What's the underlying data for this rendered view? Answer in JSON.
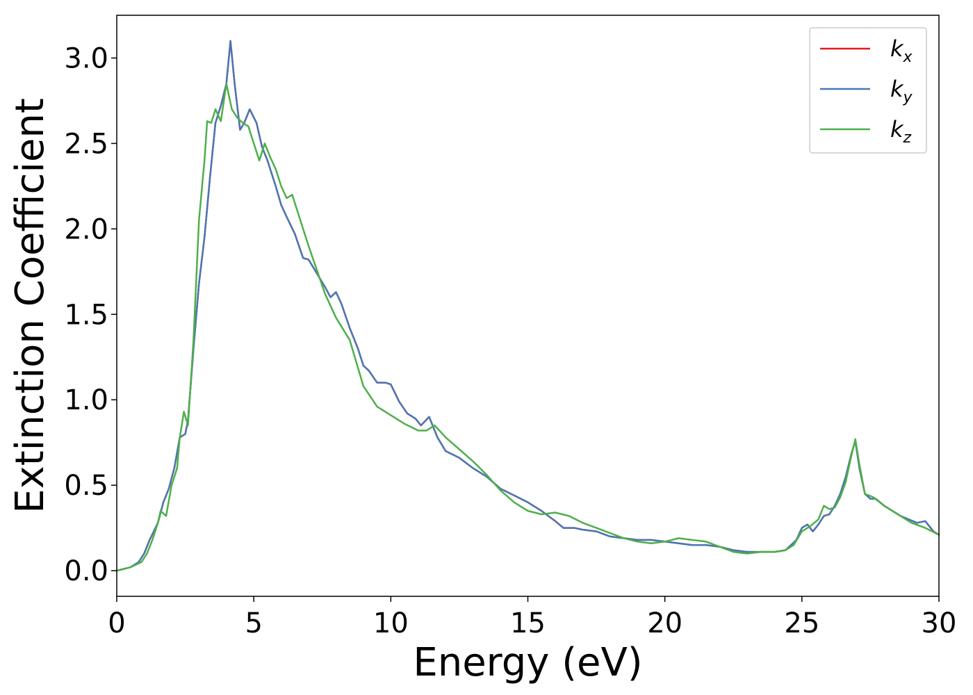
{
  "chart_data": {
    "type": "line",
    "title": "",
    "xlabel": "Energy (eV)",
    "ylabel": "Extinction Coefficient",
    "xlim": [
      0,
      30
    ],
    "ylim": [
      -0.15,
      3.25
    ],
    "xticks": [
      0,
      5,
      10,
      15,
      20,
      25,
      30
    ],
    "xtick_labels": [
      "0",
      "5",
      "10",
      "15",
      "20",
      "25",
      "30"
    ],
    "yticks": [
      0.0,
      0.5,
      1.0,
      1.5,
      2.0,
      2.5,
      3.0
    ],
    "ytick_labels": [
      "0.0",
      "0.5",
      "1.0",
      "1.5",
      "2.0",
      "2.5",
      "3.0"
    ],
    "grid": false,
    "legend_position": "top-right",
    "series": [
      {
        "name": "k",
        "subscript": "x",
        "color": "#e41a1c",
        "x": [
          0,
          0.5,
          0.8,
          1.0,
          1.2,
          1.5,
          1.7,
          1.9,
          2.1,
          2.3,
          2.5,
          2.6,
          2.8,
          3.0,
          3.2,
          3.4,
          3.6,
          3.8,
          4.0,
          4.15,
          4.3,
          4.5,
          4.65,
          4.85,
          5.1,
          5.3,
          5.5,
          5.8,
          6.0,
          6.2,
          6.5,
          6.8,
          7.0,
          7.3,
          7.6,
          7.8,
          8.0,
          8.2,
          8.5,
          8.8,
          9.0,
          9.2,
          9.5,
          9.8,
          10.0,
          10.3,
          10.6,
          10.9,
          11.1,
          11.4,
          11.7,
          12.0,
          12.5,
          13.0,
          13.5,
          14.0,
          14.5,
          15.0,
          15.5,
          16.0,
          16.3,
          16.7,
          17.0,
          17.5,
          18.0,
          18.5,
          19.0,
          19.5,
          20.0,
          20.5,
          21.0,
          21.5,
          22.0,
          22.5,
          23.0,
          23.5,
          24.0,
          24.4,
          24.8,
          25.0,
          25.2,
          25.4,
          25.6,
          25.8,
          26.0,
          26.2,
          26.4,
          26.6,
          26.8,
          26.95,
          27.1,
          27.3,
          27.5,
          27.7,
          28.0,
          28.3,
          28.6,
          28.9,
          29.2,
          29.5,
          29.8,
          30.0
        ],
        "y": [
          0.0,
          0.02,
          0.05,
          0.1,
          0.18,
          0.28,
          0.4,
          0.48,
          0.6,
          0.78,
          0.8,
          0.88,
          1.3,
          1.68,
          1.95,
          2.3,
          2.62,
          2.72,
          2.85,
          3.1,
          2.85,
          2.58,
          2.62,
          2.7,
          2.62,
          2.48,
          2.4,
          2.25,
          2.14,
          2.07,
          1.97,
          1.83,
          1.82,
          1.74,
          1.66,
          1.6,
          1.63,
          1.56,
          1.42,
          1.3,
          1.2,
          1.17,
          1.1,
          1.1,
          1.09,
          0.99,
          0.92,
          0.89,
          0.85,
          0.9,
          0.78,
          0.7,
          0.66,
          0.6,
          0.55,
          0.48,
          0.44,
          0.4,
          0.35,
          0.29,
          0.25,
          0.25,
          0.24,
          0.23,
          0.2,
          0.19,
          0.18,
          0.18,
          0.17,
          0.16,
          0.15,
          0.15,
          0.14,
          0.12,
          0.11,
          0.11,
          0.11,
          0.12,
          0.18,
          0.25,
          0.27,
          0.23,
          0.27,
          0.32,
          0.33,
          0.38,
          0.45,
          0.55,
          0.68,
          0.76,
          0.6,
          0.45,
          0.42,
          0.42,
          0.38,
          0.35,
          0.32,
          0.3,
          0.28,
          0.29,
          0.23,
          0.21
        ]
      },
      {
        "name": "k",
        "subscript": "y",
        "color": "#4a78b5",
        "x": [
          0,
          0.5,
          0.8,
          1.0,
          1.2,
          1.5,
          1.7,
          1.9,
          2.1,
          2.3,
          2.5,
          2.6,
          2.8,
          3.0,
          3.2,
          3.4,
          3.6,
          3.8,
          4.0,
          4.15,
          4.3,
          4.5,
          4.65,
          4.85,
          5.1,
          5.3,
          5.5,
          5.8,
          6.0,
          6.2,
          6.5,
          6.8,
          7.0,
          7.3,
          7.6,
          7.8,
          8.0,
          8.2,
          8.5,
          8.8,
          9.0,
          9.2,
          9.5,
          9.8,
          10.0,
          10.3,
          10.6,
          10.9,
          11.1,
          11.4,
          11.7,
          12.0,
          12.5,
          13.0,
          13.5,
          14.0,
          14.5,
          15.0,
          15.5,
          16.0,
          16.3,
          16.7,
          17.0,
          17.5,
          18.0,
          18.5,
          19.0,
          19.5,
          20.0,
          20.5,
          21.0,
          21.5,
          22.0,
          22.5,
          23.0,
          23.5,
          24.0,
          24.4,
          24.8,
          25.0,
          25.2,
          25.4,
          25.6,
          25.8,
          26.0,
          26.2,
          26.4,
          26.6,
          26.8,
          26.95,
          27.1,
          27.3,
          27.5,
          27.7,
          28.0,
          28.3,
          28.6,
          28.9,
          29.2,
          29.5,
          29.8,
          30.0
        ],
        "y": [
          0.0,
          0.02,
          0.05,
          0.1,
          0.18,
          0.28,
          0.4,
          0.48,
          0.6,
          0.78,
          0.8,
          0.88,
          1.3,
          1.68,
          1.95,
          2.3,
          2.62,
          2.72,
          2.85,
          3.1,
          2.85,
          2.58,
          2.62,
          2.7,
          2.62,
          2.48,
          2.4,
          2.25,
          2.14,
          2.07,
          1.97,
          1.83,
          1.82,
          1.74,
          1.66,
          1.6,
          1.63,
          1.56,
          1.42,
          1.3,
          1.2,
          1.17,
          1.1,
          1.1,
          1.09,
          0.99,
          0.92,
          0.89,
          0.85,
          0.9,
          0.78,
          0.7,
          0.66,
          0.6,
          0.55,
          0.48,
          0.44,
          0.4,
          0.35,
          0.29,
          0.25,
          0.25,
          0.24,
          0.23,
          0.2,
          0.19,
          0.18,
          0.18,
          0.17,
          0.16,
          0.15,
          0.15,
          0.14,
          0.12,
          0.11,
          0.11,
          0.11,
          0.12,
          0.18,
          0.25,
          0.27,
          0.23,
          0.27,
          0.32,
          0.33,
          0.38,
          0.45,
          0.55,
          0.68,
          0.76,
          0.6,
          0.45,
          0.42,
          0.42,
          0.38,
          0.35,
          0.32,
          0.3,
          0.28,
          0.29,
          0.23,
          0.21
        ]
      },
      {
        "name": "k",
        "subscript": "z",
        "color": "#4daf4a",
        "x": [
          0,
          0.5,
          0.9,
          1.1,
          1.3,
          1.5,
          1.6,
          1.8,
          2.0,
          2.2,
          2.3,
          2.45,
          2.6,
          2.8,
          3.0,
          3.2,
          3.3,
          3.45,
          3.6,
          3.8,
          4.0,
          4.2,
          4.4,
          4.6,
          4.8,
          5.0,
          5.2,
          5.4,
          5.6,
          5.8,
          6.0,
          6.2,
          6.4,
          6.6,
          6.8,
          7.0,
          7.3,
          7.6,
          8.0,
          8.5,
          9.0,
          9.5,
          10.0,
          10.5,
          11.0,
          11.3,
          11.6,
          12.0,
          12.5,
          13.0,
          13.5,
          14.0,
          14.5,
          15.0,
          15.5,
          16.0,
          16.5,
          17.0,
          17.5,
          18.0,
          18.5,
          19.0,
          19.5,
          20.0,
          20.5,
          21.0,
          21.5,
          22.0,
          22.5,
          23.0,
          23.5,
          24.0,
          24.4,
          24.7,
          25.0,
          25.3,
          25.6,
          25.8,
          26.0,
          26.2,
          26.4,
          26.6,
          26.8,
          26.95,
          27.1,
          27.3,
          27.6,
          28.0,
          28.5,
          29.0,
          29.5,
          30.0
        ],
        "y": [
          0.0,
          0.02,
          0.05,
          0.1,
          0.18,
          0.28,
          0.35,
          0.32,
          0.5,
          0.6,
          0.78,
          0.93,
          0.85,
          1.35,
          2.05,
          2.4,
          2.63,
          2.62,
          2.7,
          2.63,
          2.85,
          2.7,
          2.65,
          2.62,
          2.6,
          2.5,
          2.4,
          2.5,
          2.42,
          2.35,
          2.25,
          2.18,
          2.2,
          2.1,
          2.0,
          1.9,
          1.76,
          1.62,
          1.48,
          1.35,
          1.08,
          0.96,
          0.91,
          0.86,
          0.82,
          0.82,
          0.85,
          0.78,
          0.71,
          0.64,
          0.56,
          0.47,
          0.4,
          0.35,
          0.33,
          0.34,
          0.32,
          0.28,
          0.25,
          0.22,
          0.19,
          0.17,
          0.16,
          0.17,
          0.19,
          0.18,
          0.17,
          0.14,
          0.11,
          0.1,
          0.11,
          0.11,
          0.12,
          0.15,
          0.23,
          0.26,
          0.3,
          0.38,
          0.36,
          0.37,
          0.43,
          0.52,
          0.67,
          0.77,
          0.62,
          0.45,
          0.43,
          0.38,
          0.33,
          0.28,
          0.25,
          0.21
        ]
      }
    ]
  }
}
